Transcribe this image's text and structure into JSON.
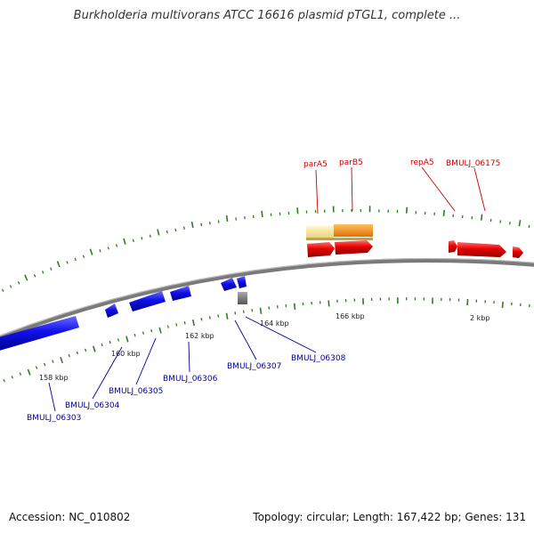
{
  "title": "Burkholderia multivorans ATCC 16616 plasmid pTGL1, complete ...",
  "footer": {
    "accession": "Accession: NC_010802",
    "summary": "Topology: circular; Length: 167,422 bp; Genes: 131"
  },
  "colors": {
    "forward_gene": "#e60000",
    "reverse_gene": "#1010ee",
    "forward_label": "#cc0000",
    "reverse_label": "#000099",
    "tick": "#2e7d1e",
    "backbone": "#8c8c8c",
    "feature_light": "#f5e39a",
    "feature_orange": "#ff8c00",
    "feature_gray": "#777777"
  },
  "kbp_labels": [
    "158 kbp",
    "160 kbp",
    "162 kbp",
    "164 kbp",
    "166 kbp",
    "2 kbp"
  ],
  "forward_labels": [
    "parA5",
    "parB5",
    "repA5",
    "BMULJ_06175"
  ],
  "reverse_labels": [
    "BMULJ_06303",
    "BMULJ_06304",
    "BMULJ_06305",
    "BMULJ_06306",
    "BMULJ_06307",
    "BMULJ_06308"
  ]
}
